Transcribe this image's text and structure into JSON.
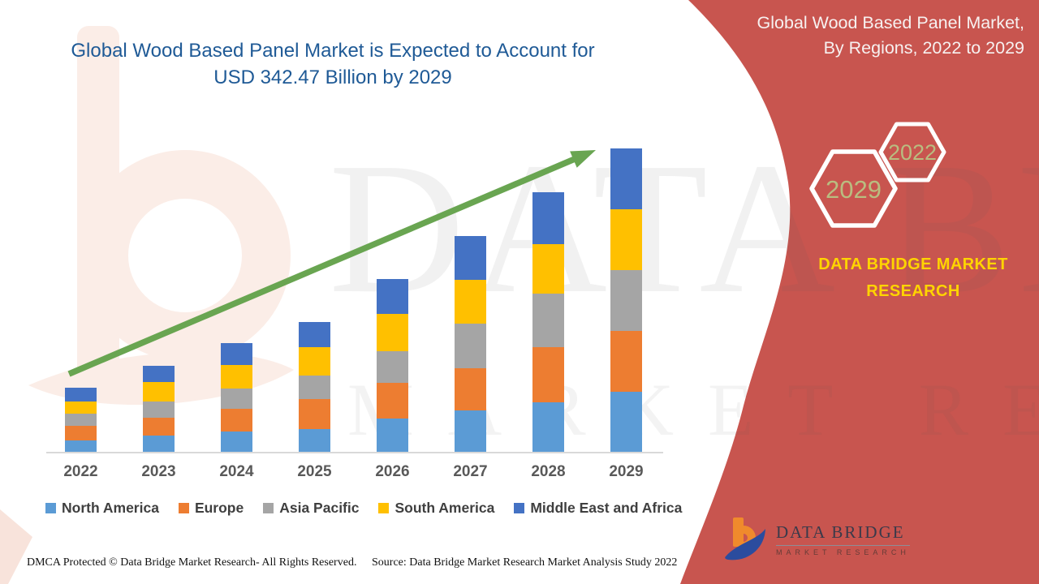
{
  "chart_title": {
    "line1": "Global Wood Based Panel Market is Expected to Account for",
    "line2": "USD 342.47 Billion by 2029"
  },
  "right_panel": {
    "bg_color": "#C8554F",
    "title_line1": "Global Wood Based Panel Market,",
    "title_line2": "By Regions, 2022 to 2029",
    "hexagon_front_year": "2029",
    "hexagon_back_year": "2022",
    "brand_line1": "DATA BRIDGE MARKET",
    "brand_line2": "RESEARCH",
    "brand_color": "#FFD400",
    "logo": {
      "title": "DATA BRIDGE",
      "subtitle": "MARKET RESEARCH"
    }
  },
  "watermark": {
    "line1": "DATA BRIDGE",
    "line2": "MARKET RESEARCH"
  },
  "chart_data": {
    "type": "bar",
    "stacked": true,
    "title": "Global Wood Based Panel Market, By Regions, 2022 to 2029",
    "unit": "USD Billion",
    "categories": [
      "2022",
      "2023",
      "2024",
      "2025",
      "2026",
      "2027",
      "2028",
      "2029"
    ],
    "series": [
      {
        "name": "North America",
        "color": "#5B9BD5",
        "values": [
          12.8,
          18.3,
          22.9,
          25.6,
          37.5,
          46.7,
          55.9,
          67.7
        ]
      },
      {
        "name": "Europe",
        "color": "#ED7D31",
        "values": [
          16.5,
          20.1,
          25.6,
          33.9,
          40.3,
          47.6,
          62.3,
          68.7
        ]
      },
      {
        "name": "Asia Pacific",
        "color": "#A5A5A5",
        "values": [
          13.7,
          18.3,
          22.9,
          26.6,
          35.7,
          50.4,
          60.4,
          68.7
        ]
      },
      {
        "name": "South America",
        "color": "#FFC000",
        "values": [
          13.7,
          22.0,
          26.6,
          32.0,
          42.1,
          49.4,
          55.9,
          68.7
        ]
      },
      {
        "name": "Middle East and Africa",
        "color": "#4472C4",
        "values": [
          15.6,
          18.3,
          24.7,
          28.4,
          39.4,
          49.4,
          58.6,
          68.7
        ]
      }
    ],
    "totals_estimated": [
      72.3,
      97.0,
      122.7,
      146.5,
      195.0,
      243.5,
      293.1,
      342.47
    ],
    "final_value_label": "USD 342.47 Billion by 2029",
    "ylim": [
      0,
      360
    ],
    "gridlines": false,
    "legend_position": "bottom",
    "annotation": "Green upward trend arrow from 2022 to 2029",
    "trend_arrow_color": "#69A551"
  },
  "footer": {
    "left": "DMCA Protected © Data Bridge Market Research- All Rights Reserved.",
    "right": "Source: Data Bridge Market Research Market Analysis Study 2022"
  }
}
